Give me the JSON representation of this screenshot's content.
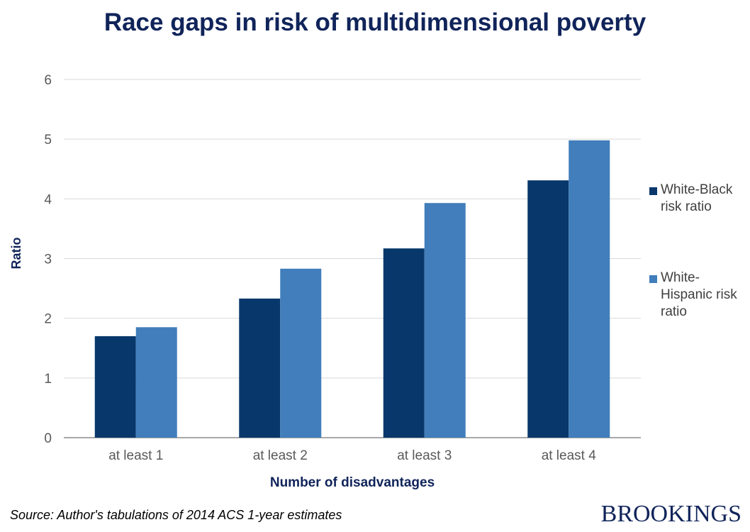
{
  "title": "Race gaps in risk of multidimensional poverty",
  "source": "Source: Author's tabulations of 2014 ACS 1-year estimates",
  "logo": "BROOKINGS",
  "chart_data": {
    "type": "bar",
    "title": "Race gaps in risk of multidimensional poverty",
    "xlabel": "Number of disadvantages",
    "ylabel": "Ratio",
    "categories": [
      "at least 1",
      "at least 2",
      "at least 3",
      "at least 4"
    ],
    "series": [
      {
        "name": "White-Black risk ratio",
        "values": [
          1.7,
          2.33,
          3.17,
          4.31
        ],
        "color": "#08386b"
      },
      {
        "name": "White-Hispanic risk ratio",
        "values": [
          1.85,
          2.83,
          3.93,
          4.98
        ],
        "color": "#417ebb"
      }
    ],
    "ylim": [
      0,
      6
    ],
    "yticks": [
      0,
      1,
      2,
      3,
      4,
      5,
      6
    ],
    "grid": true,
    "legend": "right",
    "legend_lines": [
      [
        "White-Black",
        "risk ratio"
      ],
      [
        "White-",
        "Hispanic risk",
        "ratio"
      ]
    ]
  }
}
